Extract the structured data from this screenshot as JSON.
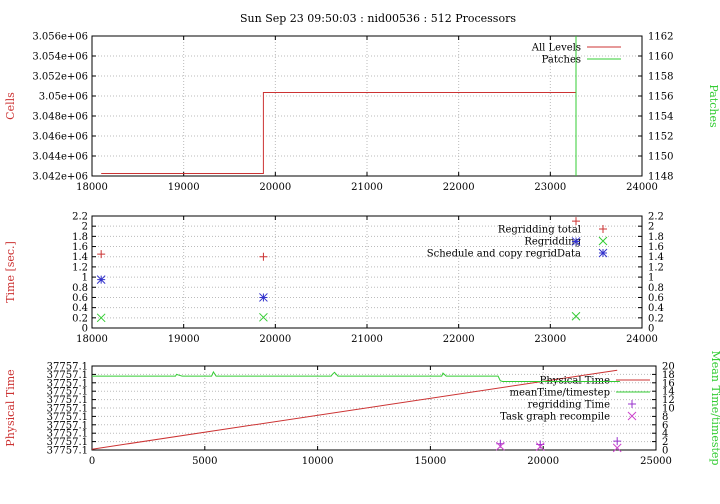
{
  "title": "Sun Sep 23 09:50:03 : nid00536 : 512 Processors",
  "colors": {
    "red": "#cc3333",
    "green": "#33cc33",
    "blue": "#3333cc",
    "purple": "#9933cc",
    "magenta": "#cc44cc",
    "grid": "#bbbbbb"
  },
  "chart_data": [
    {
      "type": "line",
      "ylabel": "Cells",
      "y2label": "Patches",
      "xlim": [
        18000,
        24000
      ],
      "ylim": [
        3042000,
        3056000
      ],
      "y2lim": [
        1148,
        1162
      ],
      "xticks": [
        18000,
        19000,
        20000,
        21000,
        22000,
        23000,
        24000
      ],
      "xtick_labels": [
        "18000",
        "19000",
        "20000",
        "21000",
        "22000",
        "23000",
        "24000"
      ],
      "yticks": [
        3042000,
        3044000,
        3046000,
        3048000,
        3050000,
        3052000,
        3054000,
        3056000
      ],
      "ytick_labels": [
        "3.042e+06",
        "3.044e+06",
        "3.046e+06",
        "3.048e+06",
        "3.05e+06",
        "3.052e+06",
        "3.054e+06",
        "3.056e+06"
      ],
      "y2ticks": [
        1148,
        1150,
        1152,
        1154,
        1156,
        1158,
        1160,
        1162
      ],
      "y2tick_labels": [
        "1148",
        "1150",
        "1152",
        "1154",
        "1156",
        "1158",
        "1160",
        "1162"
      ],
      "grid": true,
      "legend": "top-right",
      "series": [
        {
          "name": "All Levels",
          "axis": "y",
          "color": "#cc3333",
          "x": [
            18100,
            19870,
            19870,
            23280,
            23280
          ],
          "y": [
            3042250,
            3042250,
            3050350,
            3050350,
            3056000
          ]
        },
        {
          "name": "Patches",
          "axis": "y2",
          "color": "#33cc33",
          "x": [
            23280,
            23280
          ],
          "y": [
            1148,
            1162
          ]
        }
      ]
    },
    {
      "type": "scatter",
      "ylabel": "Time [sec.]",
      "xlim": [
        18000,
        24000
      ],
      "ylim": [
        0,
        2.2
      ],
      "xticks": [
        18000,
        19000,
        20000,
        21000,
        22000,
        23000,
        24000
      ],
      "xtick_labels": [
        "18000",
        "19000",
        "20000",
        "21000",
        "22000",
        "23000",
        "24000"
      ],
      "yticks": [
        0,
        0.2,
        0.4,
        0.6,
        0.8,
        1,
        1.2,
        1.4,
        1.6,
        1.8,
        2,
        2.2
      ],
      "ytick_labels": [
        "0",
        "0.2",
        "0.4",
        "0.6",
        "0.8",
        "1",
        "1.2",
        "1.4",
        "1.6",
        "1.8",
        "2",
        "2.2"
      ],
      "grid": true,
      "legend": "top-right",
      "series": [
        {
          "name": "Regridding total",
          "marker": "plus",
          "color": "#cc3333",
          "x": [
            18100,
            19870,
            23280
          ],
          "y": [
            1.45,
            1.4,
            2.1
          ]
        },
        {
          "name": "Regridding",
          "marker": "cross",
          "color": "#33cc33",
          "x": [
            18100,
            19870,
            23280
          ],
          "y": [
            0.2,
            0.21,
            0.23
          ]
        },
        {
          "name": "Schedule and copy regridData",
          "marker": "star",
          "color": "#3333cc",
          "x": [
            18100,
            19870,
            23280
          ],
          "y": [
            0.95,
            0.6,
            1.7
          ]
        }
      ]
    },
    {
      "type": "line",
      "ylabel": "Physical Time",
      "y2label": "Mean Time/timestep",
      "xlim": [
        0,
        25000
      ],
      "y2lim": [
        0,
        20
      ],
      "xticks": [
        0,
        5000,
        10000,
        15000,
        20000,
        25000
      ],
      "xtick_labels": [
        "0",
        "5000",
        "10000",
        "15000",
        "20000",
        "25000"
      ],
      "ytick_labels": [
        "37757.1",
        "37757.1",
        "37757.1",
        "37757.1",
        "37757.1",
        "37757.1",
        "37757.1",
        "37757.1",
        "37757.1",
        "37757.1",
        "37757.1"
      ],
      "y2ticks": [
        0,
        2,
        4,
        6,
        8,
        10,
        12,
        14,
        16,
        18,
        20
      ],
      "y2tick_labels": [
        "0",
        "2",
        "4",
        "6",
        "8",
        "10",
        "12",
        "14",
        "16",
        "18",
        "20"
      ],
      "grid": true,
      "legend": "top-right",
      "series": [
        {
          "name": "Physical Time",
          "axis": "y2",
          "color": "#cc3333",
          "x": [
            0,
            23280
          ],
          "y": [
            0.2,
            19.0
          ]
        },
        {
          "name": "meanTime/timestep",
          "axis": "y2",
          "color": "#33cc33",
          "x": [
            0,
            3700,
            3750,
            3850,
            4000,
            5300,
            5380,
            5500,
            10600,
            10650,
            10750,
            10900,
            15500,
            15560,
            15700,
            18000,
            18100,
            18200,
            23300,
            23400
          ],
          "y": [
            17.6,
            17.6,
            18.0,
            17.8,
            17.6,
            17.6,
            18.6,
            17.6,
            17.6,
            18.0,
            18.5,
            17.6,
            17.6,
            18.3,
            17.6,
            17.6,
            16.5,
            16.3,
            16.3,
            16.3
          ]
        },
        {
          "name": "regridding Time",
          "marker": "plus",
          "color": "#9933cc",
          "axis": "y2",
          "x": [
            18100,
            19870,
            23280
          ],
          "y": [
            1.5,
            1.3,
            2.1
          ]
        },
        {
          "name": "Task graph recompile",
          "marker": "cross",
          "color": "#cc44cc",
          "axis": "y2",
          "x": [
            18100,
            19870,
            23280
          ],
          "y": [
            0.9,
            0.8,
            0.5
          ]
        }
      ]
    }
  ]
}
